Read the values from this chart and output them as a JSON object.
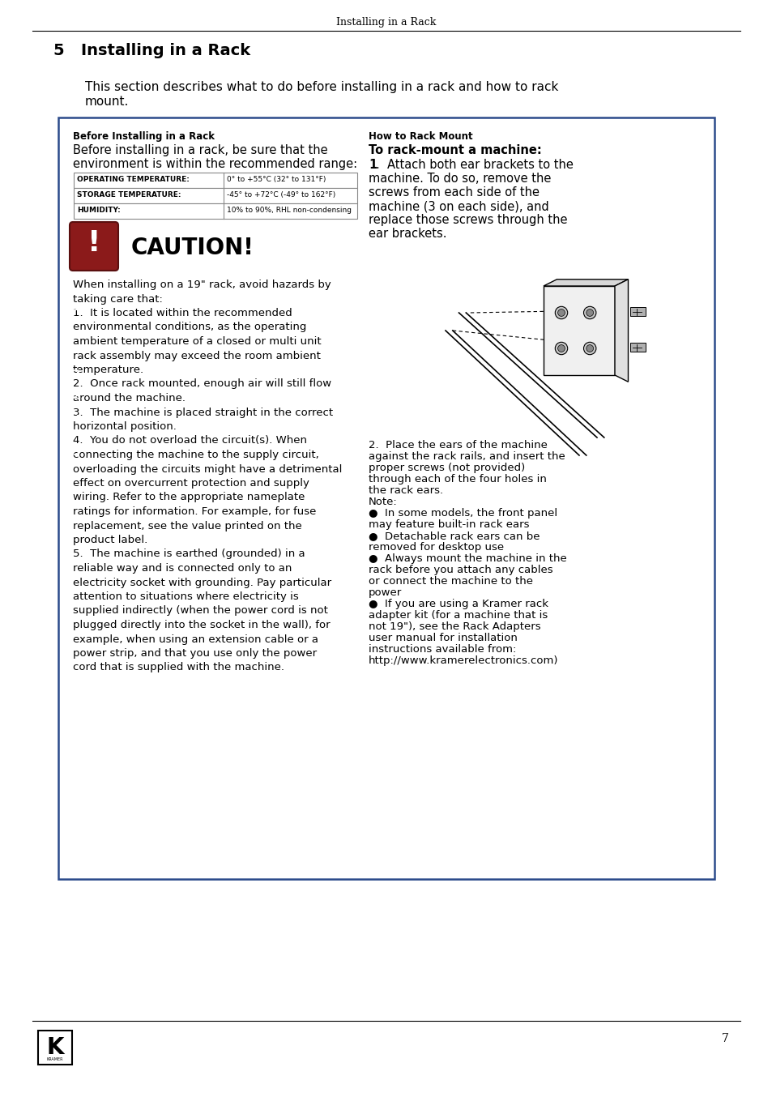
{
  "page_title": "Installing in a Rack",
  "section_number": "5",
  "section_title": "Installing in a Rack",
  "section_intro": "This section describes what to do before installing in a rack and how to rack\nmount.",
  "box_left_title": "Before Installing in a Rack",
  "box_left_intro": "Before installing in a rack, be sure that the\nenvironment is within the recommended range:",
  "table_rows": [
    [
      "OPERATING TEMPERATURE:",
      "0° to +55°C (32° to 131°F)"
    ],
    [
      "STORAGE TEMPERATURE:",
      "-45° to +72°C (-49° to 162°F)"
    ],
    [
      "HUMIDITY:",
      "10% to 90%, RHL non-condensing"
    ]
  ],
  "caution_title": "CAUTION!",
  "caution_body_lines": [
    [
      "normal",
      "When installing on a 19\" rack, avoid hazards by"
    ],
    [
      "normal",
      "taking care that:"
    ],
    [
      "bold",
      "1"
    ],
    [
      "normal",
      ".  It is located within the recommended"
    ],
    [
      "normal",
      "environmental conditions, as the operating"
    ],
    [
      "normal",
      "ambient temperature of a closed or multi unit"
    ],
    [
      "normal",
      "rack assembly may exceed the room ambient"
    ],
    [
      "normal",
      "temperature."
    ],
    [
      "bold",
      "2"
    ],
    [
      "normal",
      ".  Once rack mounted, enough air will still flow"
    ],
    [
      "normal",
      "around the machine."
    ],
    [
      "bold",
      "3"
    ],
    [
      "normal",
      ".  The machine is placed straight in the correct"
    ],
    [
      "normal",
      "horizontal position."
    ],
    [
      "bold",
      "4"
    ],
    [
      "normal",
      ".  You do not overload the circuit(s). When"
    ],
    [
      "normal",
      "connecting the machine to the supply circuit,"
    ],
    [
      "normal",
      "overloading the circuits might have a detrimental"
    ],
    [
      "normal",
      "effect on overcurrent protection and supply"
    ],
    [
      "normal",
      "wiring. Refer to the appropriate nameplate"
    ],
    [
      "normal",
      "ratings for information. For example, for fuse"
    ],
    [
      "normal",
      "replacement, see the value printed on the"
    ],
    [
      "normal",
      "product label."
    ],
    [
      "bold",
      "5"
    ],
    [
      "normal",
      ".  The machine is earthed (grounded) in a"
    ],
    [
      "normal",
      "reliable way and is connected only to an"
    ],
    [
      "normal",
      "electricity socket with grounding. Pay particular"
    ],
    [
      "normal",
      "attention to situations where electricity is"
    ],
    [
      "normal",
      "supplied indirectly (when the power cord is not"
    ],
    [
      "normal",
      "plugged directly into the socket in the wall), for"
    ],
    [
      "normal",
      "example, when using an extension cable or a"
    ],
    [
      "normal",
      "power strip, and that you use only the power"
    ],
    [
      "normal",
      "cord that is supplied with the machine."
    ]
  ],
  "caution_body": "When installing on a 19\" rack, avoid hazards by\ntaking care that:\n1.  It is located within the recommended\nenvironmental conditions, as the operating\nambient temperature of a closed or multi unit\nrack assembly may exceed the room ambient\ntemperature.\n2.  Once rack mounted, enough air will still flow\naround the machine.\n3.  The machine is placed straight in the correct\nhorizontal position.\n4.  You do not overload the circuit(s). When\nconnecting the machine to the supply circuit,\noverloading the circuits might have a detrimental\neffect on overcurrent protection and supply\nwiring. Refer to the appropriate nameplate\nratings for information. For example, for fuse\nreplacement, see the value printed on the\nproduct label.\n5.  The machine is earthed (grounded) in a\nreliable way and is connected only to an\nelectricity socket with grounding. Pay particular\nattention to situations where electricity is\nsupplied indirectly (when the power cord is not\nplugged directly into the socket in the wall), for\nexample, when using an extension cable or a\npower strip, and that you use only the power\ncord that is supplied with the machine.",
  "box_right_title": "How to Rack Mount",
  "box_right_subtitle": "To rack-mount a machine:",
  "box_right_step1": "1.  Attach both ear brackets to the\nmachine. To do so, remove the\nscrews from each side of the\nmachine (3 on each side), and\nreplace those screws through the\near brackets.",
  "box_right_step2": "2.  Place the ears of the machine\nagainst the rack rails, and insert the\nproper screws (not provided)\nthrough each of the four holes in\nthe rack ears.\nNote:\n●  In some models, the front panel\nmay feature built-in rack ears\n●  Detachable rack ears can be\nremoved for desktop use\n●  Always mount the machine in the\nrack before you attach any cables\nor connect the machine to the\npower\n●  If you are using a Kramer rack\nadapter kit (for a machine that is\nnot 19\"), see the Rack Adapters\nuser manual for installation\ninstructions available from:\nhttp://www.kramerelectronics.com)",
  "page_number": "7",
  "bg_color": "#ffffff",
  "box_border_color": "#2b4a8b",
  "table_border_color": "#888888",
  "caution_icon_bg": "#8b1a1a",
  "text_color": "#000000",
  "header_line_color": "#000000"
}
